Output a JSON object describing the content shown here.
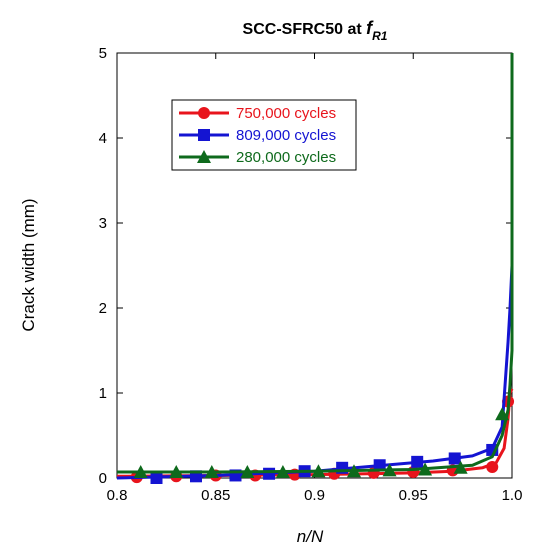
{
  "chart_data": {
    "type": "line",
    "title": "SCC-SFRC50 at ",
    "title_sym": "f",
    "title_sub": "R1",
    "xlabel": "n/N",
    "ylabel": "Crack width (mm)",
    "xlim": [
      0.8,
      1.0
    ],
    "ylim": [
      0,
      5
    ],
    "xticks": [
      "0.8",
      "0.85",
      "0.9",
      "0.95",
      "1.0"
    ],
    "yticks": [
      "0",
      "1",
      "2",
      "3",
      "4",
      "5"
    ],
    "xtick_values": [
      0.8,
      0.85,
      0.9,
      0.95,
      1.0
    ],
    "ytick_values": [
      0,
      1,
      2,
      3,
      4,
      5
    ],
    "grid": false,
    "legend_position": "upper-left",
    "series": [
      {
        "name": "750,000 cycles",
        "color": "#e8141c",
        "marker": "circle",
        "x": [
          0.8,
          0.85,
          0.9,
          0.95,
          0.97,
          0.985,
          0.992,
          0.996,
          0.998,
          0.999,
          1.0
        ],
        "y": [
          0.02,
          0.03,
          0.04,
          0.06,
          0.08,
          0.12,
          0.18,
          0.35,
          0.7,
          1.0,
          1.05
        ],
        "marker_x": [
          0.81,
          0.83,
          0.85,
          0.87,
          0.89,
          0.91,
          0.93,
          0.95,
          0.97,
          0.99,
          0.998
        ],
        "marker_y": [
          0.01,
          0.02,
          0.03,
          0.03,
          0.04,
          0.05,
          0.06,
          0.07,
          0.09,
          0.13,
          0.9
        ]
      },
      {
        "name": "809,000 cycles",
        "color": "#1414d2",
        "marker": "square",
        "x": [
          0.8,
          0.85,
          0.9,
          0.93,
          0.96,
          0.98,
          0.99,
          0.995,
          0.998,
          0.999,
          1.0
        ],
        "y": [
          0.0,
          0.03,
          0.08,
          0.14,
          0.2,
          0.26,
          0.35,
          0.6,
          1.6,
          2.0,
          2.5
        ],
        "marker_x": [
          0.82,
          0.84,
          0.86,
          0.877,
          0.895,
          0.914,
          0.933,
          0.952,
          0.971,
          0.99
        ],
        "marker_y": [
          0.0,
          0.02,
          0.03,
          0.05,
          0.08,
          0.12,
          0.15,
          0.19,
          0.23,
          0.33
        ]
      },
      {
        "name": "280,000 cycles",
        "color": "#0e6a1c",
        "marker": "triangle",
        "x": [
          0.8,
          0.85,
          0.9,
          0.95,
          0.98,
          0.99,
          0.995,
          0.998,
          0.999,
          1.0,
          1.0
        ],
        "y": [
          0.07,
          0.07,
          0.08,
          0.1,
          0.15,
          0.25,
          0.5,
          0.8,
          1.1,
          1.5,
          5.0
        ],
        "marker_x": [
          0.812,
          0.83,
          0.848,
          0.866,
          0.884,
          0.902,
          0.92,
          0.938,
          0.956,
          0.974,
          0.995
        ],
        "marker_y": [
          0.07,
          0.07,
          0.07,
          0.07,
          0.07,
          0.08,
          0.08,
          0.09,
          0.1,
          0.12,
          0.75
        ]
      }
    ]
  }
}
